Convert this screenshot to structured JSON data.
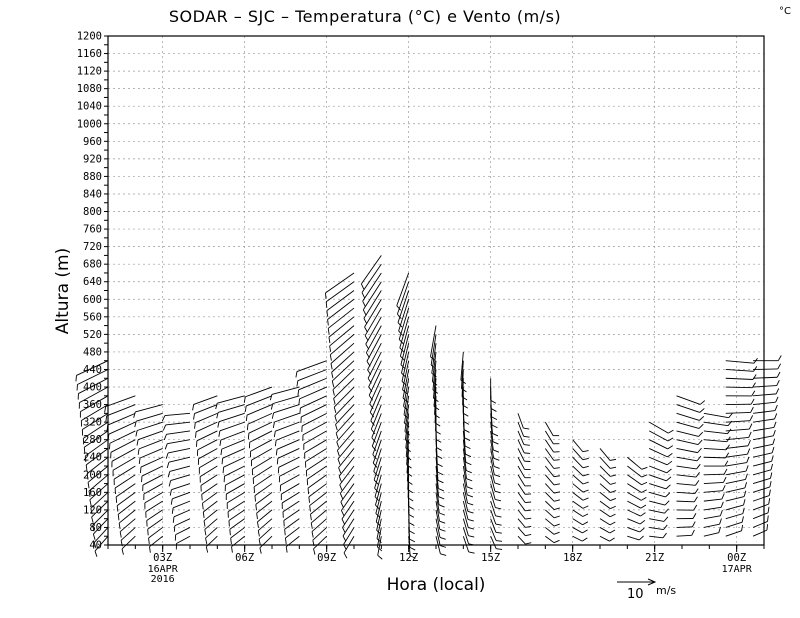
{
  "chart_data": {
    "type": "wind-barb-time-height",
    "title": "SODAR – SJC – Temperatura (°C) e Vento (m/s)",
    "corner_unit": "°C",
    "xlabel": "Hora (local)",
    "ylabel": "Altura (m)",
    "ylim": [
      40,
      1200
    ],
    "ytick_step": 20,
    "ytick_label_step": 40,
    "xlim_hours": [
      0,
      24
    ],
    "xticks": [
      {
        "hour": 2,
        "label": "03Z",
        "sub": [
          "16APR",
          "2016"
        ]
      },
      {
        "hour": 5,
        "label": "06Z",
        "sub": []
      },
      {
        "hour": 8,
        "label": "09Z",
        "sub": []
      },
      {
        "hour": 11,
        "label": "12Z",
        "sub": []
      },
      {
        "hour": 14,
        "label": "15Z",
        "sub": []
      },
      {
        "hour": 17,
        "label": "18Z",
        "sub": []
      },
      {
        "hour": 20,
        "label": "21Z",
        "sub": []
      },
      {
        "hour": 23,
        "label": "00Z",
        "sub": [
          "17APR"
        ]
      }
    ],
    "legend": {
      "speed": 10,
      "unit": "m/s",
      "label": "10",
      "unit_label": "m/s"
    },
    "grid": true,
    "profile_spacing_m": 20,
    "profiles": [
      {
        "hour": 0.0,
        "top": 460,
        "dir": 245,
        "spd": 9
      },
      {
        "hour": 1.0,
        "top": 380,
        "dir": 250,
        "spd": 8
      },
      {
        "hour": 2.0,
        "top": 360,
        "dir": 255,
        "spd": 7
      },
      {
        "hour": 3.0,
        "top": 340,
        "dir": 265,
        "spd": 6
      },
      {
        "hour": 4.0,
        "top": 380,
        "dir": 250,
        "spd": 6
      },
      {
        "hour": 5.0,
        "top": 380,
        "dir": 255,
        "spd": 7
      },
      {
        "hour": 6.0,
        "top": 400,
        "dir": 250,
        "spd": 7
      },
      {
        "hour": 7.0,
        "top": 400,
        "dir": 255,
        "spd": 7
      },
      {
        "hour": 8.0,
        "top": 460,
        "dir": 250,
        "spd": 8
      },
      {
        "hour": 9.0,
        "top": 660,
        "dir": 235,
        "spd": 9
      },
      {
        "hour": 10.0,
        "top": 700,
        "dir": 215,
        "spd": 9
      },
      {
        "hour": 11.0,
        "top": 660,
        "dir": 200,
        "spd": 9
      },
      {
        "hour": 12.0,
        "top": 540,
        "dir": 190,
        "spd": 8
      },
      {
        "hour": 13.0,
        "top": 480,
        "dir": 185,
        "spd": 7
      },
      {
        "hour": 14.0,
        "top": 420,
        "dir": 180,
        "spd": 5
      },
      {
        "hour": 15.0,
        "top": 340,
        "dir": 160,
        "spd": 3
      },
      {
        "hour": 16.0,
        "top": 320,
        "dir": 150,
        "spd": 3
      },
      {
        "hour": 17.0,
        "top": 280,
        "dir": 140,
        "spd": 3
      },
      {
        "hour": 18.0,
        "top": 260,
        "dir": 140,
        "spd": 3
      },
      {
        "hour": 19.0,
        "top": 240,
        "dir": 130,
        "spd": 4
      },
      {
        "hour": 19.8,
        "top": 320,
        "dir": 120,
        "spd": 5
      },
      {
        "hour": 20.8,
        "top": 380,
        "dir": 110,
        "spd": 6
      },
      {
        "hour": 21.8,
        "top": 340,
        "dir": 100,
        "spd": 6
      },
      {
        "hour": 22.6,
        "top": 460,
        "dir": 95,
        "spd": 7
      },
      {
        "hour": 23.6,
        "top": 460,
        "dir": 90,
        "spd": 6
      }
    ]
  }
}
